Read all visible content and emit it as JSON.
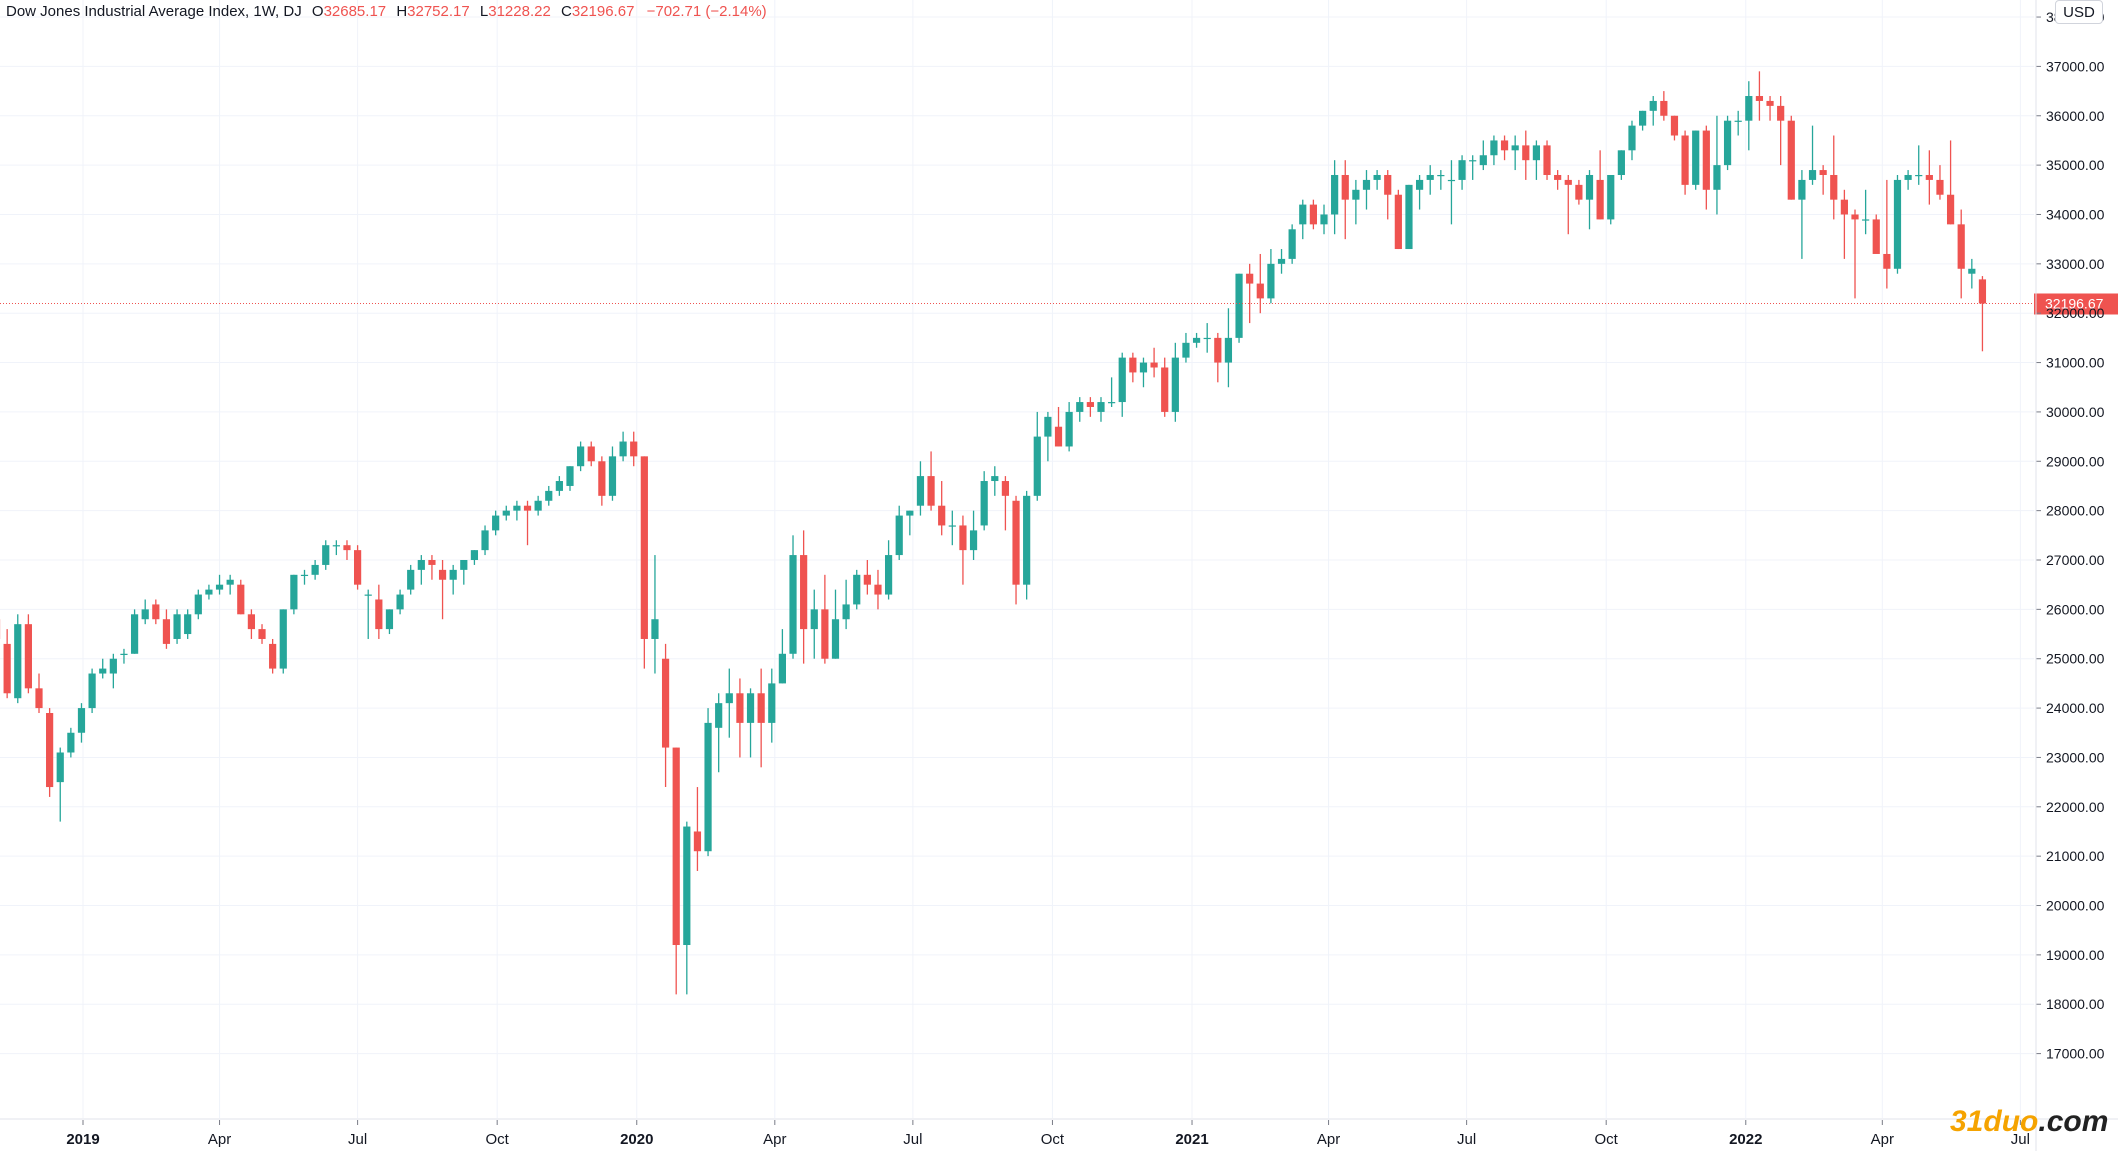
{
  "legend": {
    "symbol": "Dow Jones Industrial Average Index, 1W, DJ",
    "o_label": "O",
    "o": "32685.17",
    "h_label": "H",
    "h": "32752.17",
    "l_label": "L",
    "l": "31228.22",
    "c_label": "C",
    "c": "32196.67",
    "change": "−702.71 (−2.14%)"
  },
  "currency_button": "USD",
  "watermark": {
    "brand": "31duo",
    "tld": ".com"
  },
  "colors": {
    "up": "#26a69a",
    "down": "#ef5350",
    "grid": "#f0f3fa",
    "axis_text": "#131722"
  },
  "chart_data": {
    "type": "candlestick",
    "ylim": [
      16500,
      39000
    ],
    "y_ticks": [
      "17000.00",
      "18000.00",
      "19000.00",
      "20000.00",
      "21000.00",
      "22000.00",
      "23000.00",
      "24000.00",
      "25000.00",
      "26000.00",
      "27000.00",
      "28000.00",
      "29000.00",
      "30000.00",
      "31000.00",
      "32000.00",
      "33000.00",
      "34000.00",
      "35000.00",
      "36000.00",
      "37000.00",
      "38000.00"
    ],
    "x_ticks": [
      {
        "label": "2019",
        "date": "2019-01-01",
        "bold": true
      },
      {
        "label": "Apr",
        "date": "2019-04-01",
        "bold": false
      },
      {
        "label": "Jul",
        "date": "2019-07-01",
        "bold": false
      },
      {
        "label": "Oct",
        "date": "2019-10-01",
        "bold": false
      },
      {
        "label": "2020",
        "date": "2020-01-01",
        "bold": true
      },
      {
        "label": "Apr",
        "date": "2020-04-01",
        "bold": false
      },
      {
        "label": "Jul",
        "date": "2020-07-01",
        "bold": false
      },
      {
        "label": "Oct",
        "date": "2020-10-01",
        "bold": false
      },
      {
        "label": "2021",
        "date": "2021-01-01",
        "bold": true
      },
      {
        "label": "Apr",
        "date": "2021-04-01",
        "bold": false
      },
      {
        "label": "Jul",
        "date": "2021-07-01",
        "bold": false
      },
      {
        "label": "Oct",
        "date": "2021-10-01",
        "bold": false
      },
      {
        "label": "2022",
        "date": "2022-01-01",
        "bold": true
      },
      {
        "label": "Apr",
        "date": "2022-04-01",
        "bold": false
      },
      {
        "label": "Jul",
        "date": "2022-07-01",
        "bold": false
      }
    ],
    "last_price": "32196.67",
    "start_date": "2018-11-05",
    "interval": "1W",
    "candles": [
      [
        25800,
        25900,
        25100,
        25400
      ],
      [
        25300,
        25600,
        24200,
        24300
      ],
      [
        24200,
        25900,
        24100,
        25700
      ],
      [
        25700,
        25900,
        24300,
        24400
      ],
      [
        24400,
        24700,
        23900,
        24000
      ],
      [
        23900,
        24000,
        22200,
        22400
      ],
      [
        22500,
        23200,
        21700,
        23100
      ],
      [
        23100,
        23600,
        23000,
        23500
      ],
      [
        23500,
        24100,
        23300,
        24000
      ],
      [
        24000,
        24800,
        23900,
        24700
      ],
      [
        24700,
        25000,
        24600,
        24800
      ],
      [
        24700,
        25100,
        24400,
        25000
      ],
      [
        25100,
        25200,
        24900,
        25100
      ],
      [
        25100,
        26000,
        25100,
        25900
      ],
      [
        25800,
        26200,
        25700,
        26000
      ],
      [
        26100,
        26200,
        25700,
        25800
      ],
      [
        25800,
        26000,
        25200,
        25300
      ],
      [
        25400,
        26000,
        25300,
        25900
      ],
      [
        25500,
        26000,
        25400,
        25900
      ],
      [
        25900,
        26400,
        25800,
        26300
      ],
      [
        26300,
        26500,
        26200,
        26400
      ],
      [
        26400,
        26700,
        26300,
        26500
      ],
      [
        26500,
        26700,
        26300,
        26600
      ],
      [
        26500,
        26600,
        25900,
        25900
      ],
      [
        25900,
        26000,
        25400,
        25600
      ],
      [
        25600,
        25700,
        25300,
        25400
      ],
      [
        25300,
        25400,
        24700,
        24800
      ],
      [
        24800,
        26000,
        24700,
        26000
      ],
      [
        26000,
        26700,
        25900,
        26700
      ],
      [
        26700,
        26800,
        26500,
        26700
      ],
      [
        26700,
        27000,
        26600,
        26900
      ],
      [
        26900,
        27400,
        26800,
        27300
      ],
      [
        27300,
        27400,
        27100,
        27300
      ],
      [
        27300,
        27400,
        27000,
        27200
      ],
      [
        27200,
        27300,
        26400,
        26500
      ],
      [
        26300,
        26400,
        25400,
        26300
      ],
      [
        26200,
        26500,
        25400,
        25600
      ],
      [
        25600,
        26000,
        25500,
        26000
      ],
      [
        26000,
        26400,
        25900,
        26300
      ],
      [
        26400,
        26900,
        26300,
        26800
      ],
      [
        26800,
        27100,
        26500,
        27000
      ],
      [
        27000,
        27100,
        26600,
        26900
      ],
      [
        26800,
        27000,
        25800,
        26600
      ],
      [
        26600,
        26900,
        26300,
        26800
      ],
      [
        26800,
        27000,
        26500,
        27000
      ],
      [
        27000,
        27200,
        26900,
        27200
      ],
      [
        27200,
        27700,
        27100,
        27600
      ],
      [
        27600,
        28000,
        27500,
        27900
      ],
      [
        27900,
        28100,
        27800,
        28000
      ],
      [
        28000,
        28200,
        27800,
        28100
      ],
      [
        28100,
        28200,
        27300,
        28000
      ],
      [
        28000,
        28300,
        27900,
        28200
      ],
      [
        28200,
        28500,
        28100,
        28400
      ],
      [
        28400,
        28700,
        28300,
        28600
      ],
      [
        28500,
        28900,
        28400,
        28900
      ],
      [
        28900,
        29400,
        28800,
        29300
      ],
      [
        29300,
        29400,
        28900,
        29000
      ],
      [
        29000,
        29100,
        28100,
        28300
      ],
      [
        28300,
        29300,
        28200,
        29100
      ],
      [
        29100,
        29600,
        29000,
        29400
      ],
      [
        29400,
        29600,
        28900,
        29100
      ],
      [
        29100,
        29100,
        24800,
        25400
      ],
      [
        25400,
        27100,
        24700,
        25800
      ],
      [
        25000,
        25300,
        22400,
        23200
      ],
      [
        23200,
        23200,
        18200,
        19200
      ],
      [
        19200,
        21700,
        18200,
        21600
      ],
      [
        21500,
        22400,
        20700,
        21100
      ],
      [
        21100,
        24000,
        21000,
        23700
      ],
      [
        23600,
        24300,
        22700,
        24100
      ],
      [
        24100,
        24800,
        23400,
        24300
      ],
      [
        24300,
        24600,
        23000,
        23700
      ],
      [
        23700,
        24400,
        23000,
        24300
      ],
      [
        24300,
        24800,
        22800,
        23700
      ],
      [
        23700,
        24800,
        23300,
        24500
      ],
      [
        24500,
        25600,
        24500,
        25100
      ],
      [
        25100,
        27500,
        25000,
        27100
      ],
      [
        27100,
        27600,
        24900,
        25600
      ],
      [
        25600,
        26400,
        25000,
        26000
      ],
      [
        26000,
        26700,
        24900,
        25000
      ],
      [
        25000,
        26400,
        25000,
        25800
      ],
      [
        25800,
        26600,
        25600,
        26100
      ],
      [
        26100,
        26800,
        26000,
        26700
      ],
      [
        26700,
        27000,
        26300,
        26500
      ],
      [
        26500,
        26800,
        26000,
        26300
      ],
      [
        26300,
        27400,
        26200,
        27100
      ],
      [
        27100,
        28100,
        27000,
        27900
      ],
      [
        27900,
        28000,
        27500,
        28000
      ],
      [
        28100,
        29000,
        27900,
        28700
      ],
      [
        28700,
        29200,
        28000,
        28100
      ],
      [
        28100,
        28600,
        27500,
        27700
      ],
      [
        27700,
        28000,
        27300,
        27700
      ],
      [
        27700,
        27900,
        26500,
        27200
      ],
      [
        27200,
        28000,
        27000,
        27600
      ],
      [
        27700,
        28800,
        27600,
        28600
      ],
      [
        28600,
        28900,
        28300,
        28700
      ],
      [
        28600,
        28700,
        27600,
        28300
      ],
      [
        28200,
        28300,
        26100,
        26500
      ],
      [
        26500,
        28400,
        26200,
        28300
      ],
      [
        28300,
        30000,
        28200,
        29500
      ],
      [
        29500,
        30000,
        29000,
        29900
      ],
      [
        29700,
        30100,
        29300,
        29300
      ],
      [
        29300,
        30200,
        29200,
        30000
      ],
      [
        30000,
        30300,
        29800,
        30200
      ],
      [
        30200,
        30300,
        29900,
        30100
      ],
      [
        30000,
        30300,
        29800,
        30200
      ],
      [
        30200,
        30700,
        30100,
        30200
      ],
      [
        30200,
        31200,
        29900,
        31100
      ],
      [
        31100,
        31200,
        30600,
        30800
      ],
      [
        30800,
        31100,
        30500,
        31000
      ],
      [
        31000,
        31300,
        30700,
        30900
      ],
      [
        30900,
        31100,
        29900,
        30000
      ],
      [
        30000,
        31400,
        29800,
        31100
      ],
      [
        31100,
        31600,
        31000,
        31400
      ],
      [
        31400,
        31600,
        31300,
        31500
      ],
      [
        31500,
        31800,
        31200,
        31500
      ],
      [
        31500,
        31600,
        30600,
        31000
      ],
      [
        31000,
        32100,
        30500,
        31500
      ],
      [
        31500,
        32800,
        31400,
        32800
      ],
      [
        32800,
        33000,
        31800,
        32600
      ],
      [
        32600,
        33200,
        32000,
        32300
      ],
      [
        32300,
        33300,
        32200,
        33000
      ],
      [
        33000,
        33300,
        32800,
        33100
      ],
      [
        33100,
        33800,
        33000,
        33700
      ],
      [
        33800,
        34300,
        33500,
        34200
      ],
      [
        34200,
        34300,
        33700,
        33800
      ],
      [
        33800,
        34200,
        33600,
        34000
      ],
      [
        34000,
        35100,
        33600,
        34800
      ],
      [
        34800,
        35100,
        33500,
        34300
      ],
      [
        34300,
        34700,
        33800,
        34500
      ],
      [
        34500,
        34900,
        34100,
        34700
      ],
      [
        34700,
        34900,
        34500,
        34800
      ],
      [
        34800,
        34900,
        33900,
        34400
      ],
      [
        34400,
        34500,
        33300,
        33300
      ],
      [
        33300,
        34600,
        33300,
        34600
      ],
      [
        34500,
        34800,
        34100,
        34700
      ],
      [
        34700,
        35000,
        34400,
        34800
      ],
      [
        34800,
        34900,
        34500,
        34800
      ],
      [
        34700,
        35100,
        33800,
        34700
      ],
      [
        34700,
        35200,
        34500,
        35100
      ],
      [
        35100,
        35200,
        34700,
        35100
      ],
      [
        35000,
        35500,
        34900,
        35200
      ],
      [
        35200,
        35600,
        35000,
        35500
      ],
      [
        35500,
        35600,
        35100,
        35300
      ],
      [
        35300,
        35600,
        34900,
        35400
      ],
      [
        35400,
        35700,
        34700,
        35100
      ],
      [
        35100,
        35500,
        34700,
        35400
      ],
      [
        35400,
        35500,
        34700,
        34800
      ],
      [
        34800,
        34900,
        34500,
        34700
      ],
      [
        34700,
        34800,
        33600,
        34600
      ],
      [
        34600,
        34700,
        34200,
        34300
      ],
      [
        34300,
        34900,
        33700,
        34800
      ],
      [
        34700,
        35300,
        33900,
        33900
      ],
      [
        33900,
        34800,
        33800,
        34800
      ],
      [
        34800,
        35300,
        34700,
        35300
      ],
      [
        35300,
        35900,
        35100,
        35800
      ],
      [
        35800,
        36100,
        35700,
        36100
      ],
      [
        36100,
        36400,
        35800,
        36300
      ],
      [
        36300,
        36500,
        35900,
        36000
      ],
      [
        36000,
        36000,
        35500,
        35600
      ],
      [
        35600,
        35700,
        34400,
        34600
      ],
      [
        34600,
        35700,
        34500,
        35700
      ],
      [
        35700,
        35800,
        34100,
        34500
      ],
      [
        34500,
        36000,
        34000,
        35000
      ],
      [
        35000,
        36000,
        34900,
        35900
      ],
      [
        35900,
        36100,
        35600,
        35900
      ],
      [
        35900,
        36700,
        35300,
        36400
      ],
      [
        36400,
        36900,
        35900,
        36300
      ],
      [
        36300,
        36400,
        35900,
        36200
      ],
      [
        36200,
        36400,
        35000,
        35900
      ],
      [
        35900,
        36000,
        34300,
        34300
      ],
      [
        34300,
        34900,
        33100,
        34700
      ],
      [
        34700,
        35800,
        34600,
        34900
      ],
      [
        34900,
        35000,
        34400,
        34800
      ],
      [
        34800,
        35600,
        33900,
        34300
      ],
      [
        34300,
        34500,
        33100,
        34000
      ],
      [
        34000,
        34100,
        32300,
        33900
      ],
      [
        33900,
        34500,
        33600,
        33900
      ],
      [
        33900,
        34000,
        33300,
        33200
      ],
      [
        33200,
        34700,
        32500,
        32900
      ],
      [
        32900,
        34800,
        32800,
        34700
      ],
      [
        34700,
        34900,
        34500,
        34800
      ],
      [
        34800,
        35400,
        34600,
        34800
      ],
      [
        34800,
        35300,
        34200,
        34700
      ],
      [
        34700,
        35000,
        34300,
        34400
      ],
      [
        34400,
        35500,
        33800,
        33800
      ],
      [
        33800,
        34100,
        32300,
        32900
      ],
      [
        32800,
        33100,
        32500,
        32900
      ],
      [
        32685.17,
        32752.17,
        31228.22,
        32196.67
      ]
    ]
  }
}
